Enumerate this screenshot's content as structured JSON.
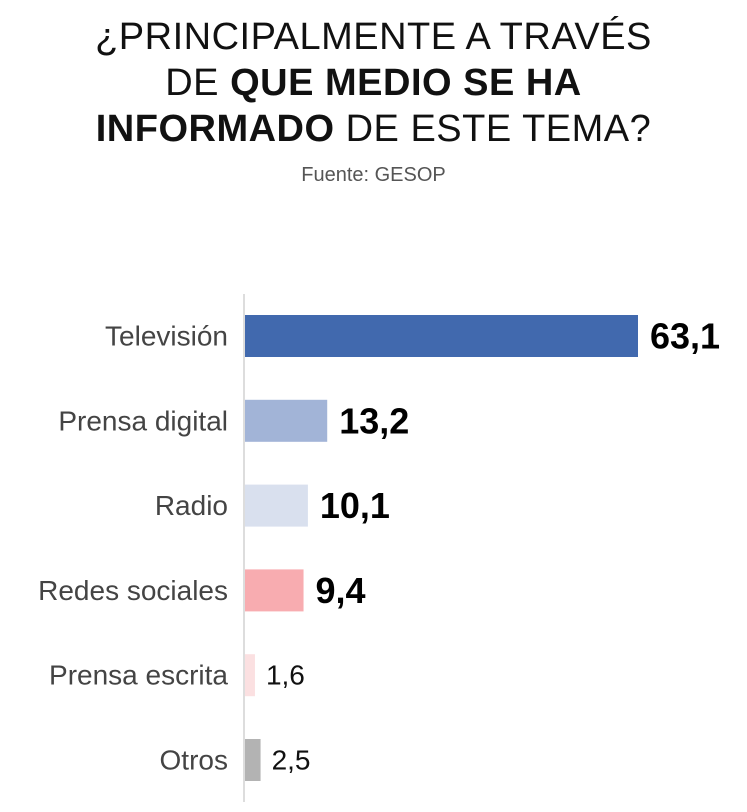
{
  "title": {
    "line1": "¿PRINCIPALMENTE A TRAVÉS",
    "line2_regular": "DE ",
    "line2_bold": "QUE MEDIO SE HA",
    "line3_bold": "INFORMADO",
    "line3_regular": " DE ESTE TEMA?"
  },
  "source": "Fuente: GESOP",
  "chart_data": {
    "type": "bar",
    "orientation": "horizontal",
    "categories": [
      "Televisión",
      "Prensa digital",
      "Radio",
      "Redes sociales",
      "Prensa escrita",
      "Otros"
    ],
    "values": [
      63.1,
      13.2,
      10.1,
      9.4,
      1.6,
      2.5
    ],
    "value_labels": [
      "63,1",
      "13,2",
      "10,1",
      "9,4",
      "1,6",
      "2,5"
    ],
    "bold_labels": [
      true,
      true,
      true,
      true,
      false,
      false
    ],
    "colors": [
      "#4169ae",
      "#a2b4d7",
      "#d9e0ee",
      "#f8acb0",
      "#fbe0e1",
      "#b3b3b3"
    ],
    "xlim": [
      0,
      63.1
    ],
    "grid": false,
    "legend": "none"
  }
}
